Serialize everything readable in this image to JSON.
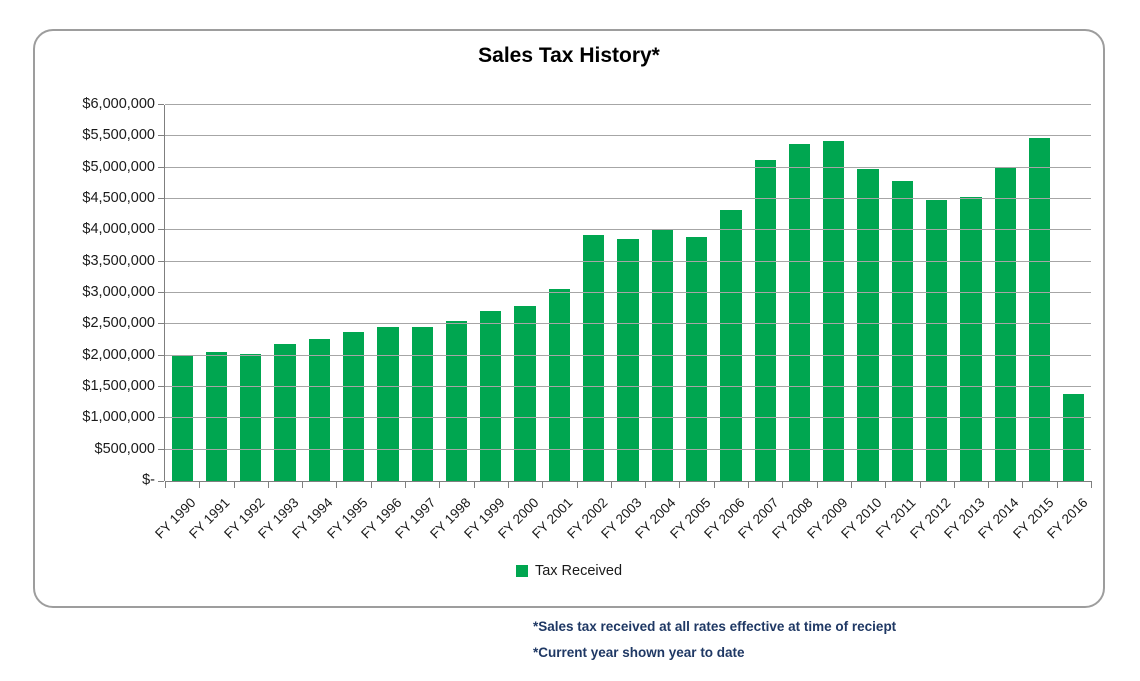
{
  "page": {
    "title": "Sales Tax History*",
    "legend_label": "Tax Received",
    "footnotes": [
      "*Sales tax received at all rates effective at time of reciept",
      "*Current year shown year to date"
    ]
  },
  "colors": {
    "bar": "#00a650",
    "gridline": "#a6a6a6",
    "axis": "#7f7f7f",
    "card_border": "#9d9d9d",
    "footnote": "#1f3864",
    "text": "#1a1a1a"
  },
  "chart_data": {
    "type": "bar",
    "title": "Sales Tax History*",
    "categories": [
      "FY 1990",
      "FY 1991",
      "FY 1992",
      "FY 1993",
      "FY 1994",
      "FY 1995",
      "FY 1996",
      "FY 1997",
      "FY 1998",
      "FY 1999",
      "FY 2000",
      "FY 2001",
      "FY 2002",
      "FY 2003",
      "FY 2004",
      "FY 2005",
      "FY 2006",
      "FY 2007",
      "FY 2008",
      "FY 2009",
      "FY 2010",
      "FY 2011",
      "FY 2012",
      "FY 2013",
      "FY 2014",
      "FY 2015",
      "FY 2016"
    ],
    "series": [
      {
        "name": "Tax Received",
        "values": [
          2000000,
          2060000,
          2030000,
          2180000,
          2270000,
          2380000,
          2450000,
          2460000,
          2550000,
          2720000,
          2790000,
          3060000,
          3930000,
          3860000,
          4000000,
          3900000,
          4320000,
          5130000,
          5370000,
          5420000,
          4980000,
          4780000,
          4480000,
          4530000,
          4990000,
          5480000,
          1390000
        ]
      }
    ],
    "xlabel": "",
    "ylabel": "",
    "ylim": [
      0,
      6000000
    ],
    "ytick_interval": 500000,
    "ytick_labels": [
      "$-",
      "$500,000",
      "$1,000,000",
      "$1,500,000",
      "$2,000,000",
      "$2,500,000",
      "$3,000,000",
      "$3,500,000",
      "$4,000,000",
      "$4,500,000",
      "$5,000,000",
      "$5,500,000",
      "$6,000,000"
    ],
    "grid": true,
    "legend_position": "bottom"
  }
}
